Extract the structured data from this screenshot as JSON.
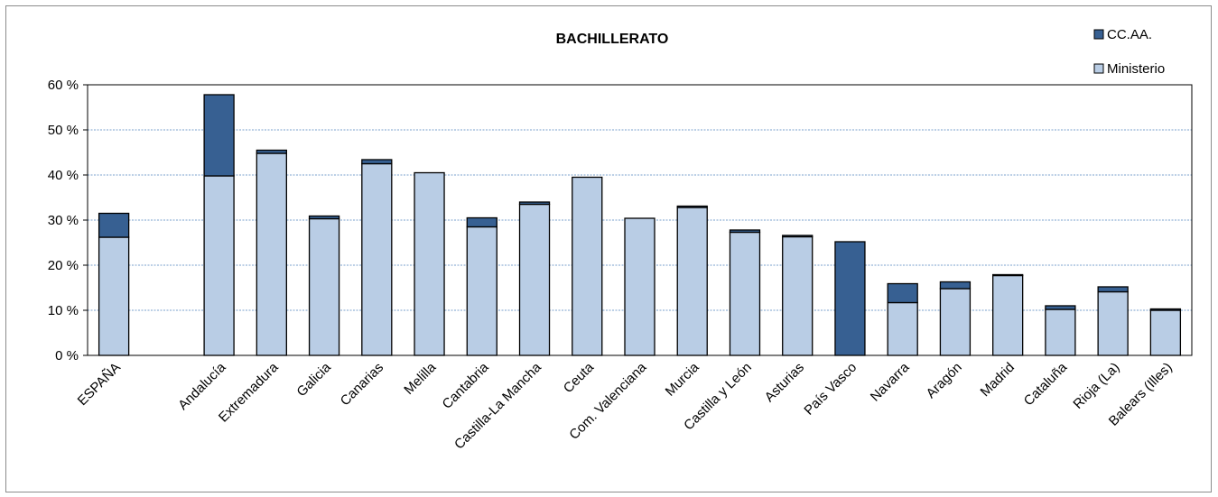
{
  "chart_data": {
    "type": "bar",
    "stacked": true,
    "title": "BACHILLERATO",
    "categories": [
      "ESPAÑA",
      "",
      "Andalucía",
      "Extremadura",
      "Galicia",
      "Canarias",
      "Melilla",
      "Cantabria",
      "Castilla-La Mancha",
      "Ceuta",
      "Com. Valenciana",
      "Murcia",
      "Castilla y León",
      "Asturias",
      "País Vasco",
      "Navarra",
      "Aragón",
      "Madrid",
      "Cataluña",
      "Rioja (La)",
      "Balears (Illes)"
    ],
    "series": [
      {
        "name": "Ministerio",
        "color": "#b9cde5",
        "values": [
          26.2,
          null,
          39.8,
          44.8,
          30.3,
          42.5,
          40.5,
          28.5,
          33.5,
          39.5,
          30.4,
          32.8,
          27.3,
          26.3,
          0,
          11.7,
          14.8,
          17.7,
          10.2,
          14.1,
          10.0
        ]
      },
      {
        "name": "CC.AA.",
        "color": "#376092",
        "values": [
          5.3,
          null,
          18.0,
          0.7,
          0.6,
          0.9,
          0,
          2.0,
          0.5,
          0,
          0,
          0.3,
          0.5,
          0.3,
          25.2,
          4.2,
          1.5,
          0.2,
          0.8,
          1.1,
          0.3
        ]
      }
    ],
    "ylim": [
      0,
      60
    ],
    "yticks": [
      0,
      10,
      20,
      30,
      40,
      50,
      60
    ],
    "ytick_labels": [
      "0 %",
      "10 %",
      "20 %",
      "30 %",
      "40 %",
      "50 %",
      "60 %"
    ],
    "xlabel": "",
    "ylabel": "",
    "grid": true,
    "legend": {
      "position": "top-right",
      "entries": [
        "CC.AA.",
        "Ministerio"
      ]
    }
  }
}
